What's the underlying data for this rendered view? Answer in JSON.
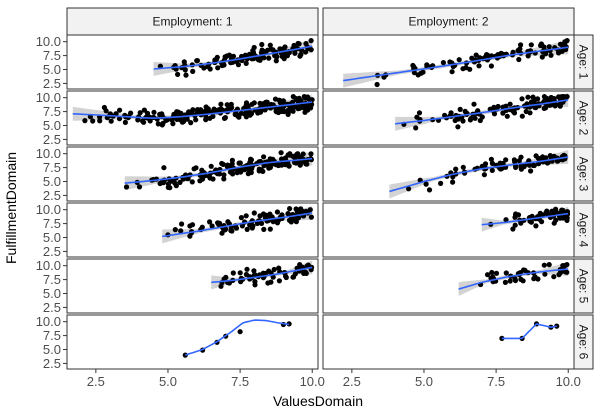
{
  "chart_data": {
    "type": "scatter",
    "xlabel": "ValuesDomain",
    "ylabel": "FulfillmentDomain",
    "xlim": [
      1.5,
      10.2
    ],
    "ylim": [
      1.5,
      11.2
    ],
    "x_ticks": [
      "2.5",
      "5.0",
      "7.5",
      "10.0"
    ],
    "x_tick_values": [
      2.5,
      5.0,
      7.5,
      10.0
    ],
    "y_ticks": [
      "2.5",
      "5.0",
      "7.5",
      "10.0"
    ],
    "y_tick_values": [
      2.5,
      5.0,
      7.5,
      10.0
    ],
    "column_labels": [
      "Employment: 1",
      "Employment: 2"
    ],
    "row_labels": [
      "Age: 1",
      "Age: 2",
      "Age: 3",
      "Age: 4",
      "Age: 5",
      "Age: 6"
    ],
    "smooth": "loess",
    "colors": {
      "points": "#000000",
      "smooth_line": "#3366ff",
      "ribbon": "#c8c8c8",
      "strip_fill": "#f2f2f2",
      "panel_border": "#333333",
      "tick": "#333333"
    },
    "panels": [
      {
        "row": 0,
        "col": 0,
        "point_range": [
          4.5,
          10.0
        ],
        "point_count": 110,
        "smooth": {
          "x": [
            4.5,
            5.5,
            6.5,
            7.5,
            8.5,
            9.5,
            10.0
          ],
          "y": [
            5.1,
            5.5,
            6.1,
            6.9,
            7.8,
            8.7,
            9.2
          ]
        }
      },
      {
        "row": 0,
        "col": 1,
        "point_range": [
          2.2,
          10.0
        ],
        "point_count": 90,
        "smooth": {
          "x": [
            2.2,
            3.5,
            5.0,
            6.5,
            8.0,
            9.0,
            10.0
          ],
          "y": [
            3.0,
            4.0,
            5.1,
            6.3,
            7.6,
            8.3,
            9.0
          ]
        }
      },
      {
        "row": 1,
        "col": 0,
        "point_range": [
          1.7,
          10.0
        ],
        "point_count": 230,
        "smooth": {
          "x": [
            1.7,
            2.5,
            3.5,
            4.5,
            5.5,
            6.5,
            7.5,
            8.5,
            10.0
          ],
          "y": [
            7.1,
            6.9,
            6.6,
            6.3,
            6.6,
            7.1,
            7.7,
            8.3,
            9.2
          ]
        }
      },
      {
        "row": 1,
        "col": 1,
        "point_range": [
          4.0,
          10.0
        ],
        "point_count": 110,
        "smooth": {
          "x": [
            4.0,
            5.0,
            6.0,
            7.0,
            8.0,
            9.0,
            10.0
          ],
          "y": [
            5.3,
            5.9,
            6.6,
            7.3,
            8.1,
            8.8,
            9.6
          ]
        }
      },
      {
        "row": 2,
        "col": 0,
        "point_range": [
          3.5,
          10.0
        ],
        "point_count": 160,
        "smooth": {
          "x": [
            3.5,
            4.5,
            5.5,
            6.5,
            7.5,
            8.5,
            10.0
          ],
          "y": [
            4.7,
            5.2,
            5.8,
            6.6,
            7.6,
            8.4,
            9.1
          ]
        }
      },
      {
        "row": 2,
        "col": 1,
        "point_range": [
          3.8,
          10.0
        ],
        "point_count": 80,
        "smooth": {
          "x": [
            3.8,
            5.0,
            6.0,
            7.0,
            8.0,
            9.0,
            10.0
          ],
          "y": [
            3.2,
            5.0,
            6.3,
            7.3,
            8.0,
            8.6,
            9.4
          ]
        }
      },
      {
        "row": 3,
        "col": 0,
        "point_range": [
          4.8,
          10.0
        ],
        "point_count": 100,
        "smooth": {
          "x": [
            4.8,
            6.0,
            7.0,
            8.0,
            9.0,
            10.0
          ],
          "y": [
            5.2,
            6.1,
            7.0,
            7.9,
            8.6,
            9.4
          ]
        }
      },
      {
        "row": 3,
        "col": 1,
        "point_range": [
          7.0,
          10.0
        ],
        "point_count": 55,
        "smooth": {
          "x": [
            7.0,
            7.8,
            8.5,
            9.2,
            10.0
          ],
          "y": [
            7.3,
            7.7,
            8.2,
            8.7,
            9.3
          ]
        }
      },
      {
        "row": 4,
        "col": 0,
        "point_range": [
          6.5,
          10.0
        ],
        "point_count": 60,
        "smooth": {
          "x": [
            6.5,
            7.3,
            8.0,
            8.8,
            9.5,
            10.0
          ],
          "y": [
            7.0,
            7.4,
            7.9,
            8.5,
            9.2,
            9.7
          ]
        }
      },
      {
        "row": 4,
        "col": 1,
        "point_range": [
          6.2,
          10.0
        ],
        "point_count": 40,
        "smooth": {
          "x": [
            6.2,
            7.0,
            7.8,
            8.5,
            9.2,
            10.0
          ],
          "y": [
            5.8,
            7.0,
            7.9,
            8.5,
            9.0,
            9.4
          ]
        }
      },
      {
        "row": 5,
        "col": 0,
        "points": [
          [
            5.6,
            4.0
          ],
          [
            6.2,
            4.9
          ],
          [
            6.7,
            6.3
          ],
          [
            7.0,
            7.4
          ],
          [
            7.5,
            8.2
          ],
          [
            9.0,
            9.5
          ],
          [
            9.2,
            9.6
          ]
        ],
        "smooth": {
          "x": [
            5.6,
            6.2,
            6.7,
            7.2,
            7.6,
            8.0,
            8.4,
            8.8,
            9.2
          ],
          "y": [
            4.0,
            5.0,
            6.4,
            8.2,
            9.8,
            10.3,
            10.2,
            9.8,
            9.5
          ]
        }
      },
      {
        "row": 5,
        "col": 1,
        "points": [
          [
            7.7,
            7.0
          ],
          [
            8.4,
            7.0
          ],
          [
            8.9,
            9.6
          ],
          [
            9.4,
            9.0
          ],
          [
            9.6,
            9.2
          ]
        ],
        "smooth": {
          "x": [
            7.7,
            8.4,
            8.9,
            9.4,
            9.6
          ],
          "y": [
            7.0,
            7.0,
            9.6,
            9.0,
            9.2
          ]
        }
      }
    ]
  }
}
